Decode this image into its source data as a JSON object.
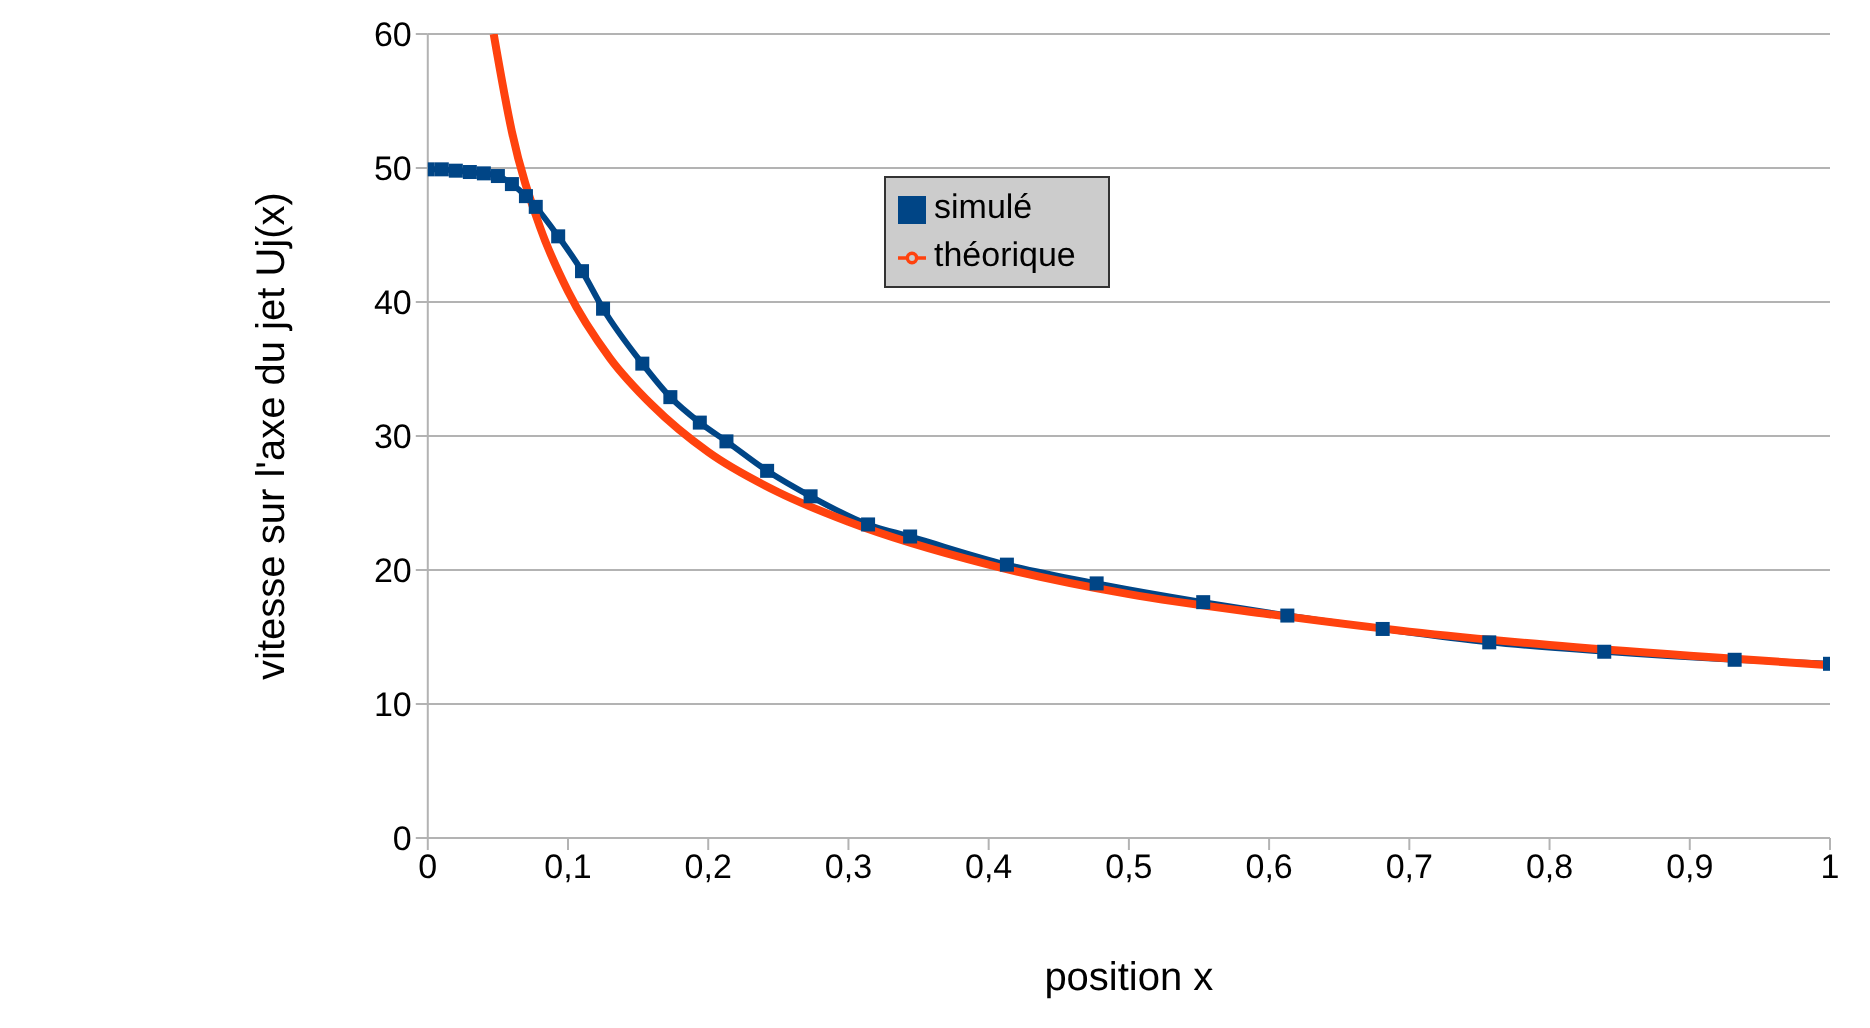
{
  "chart_data": {
    "type": "line",
    "xlabel": "position x",
    "ylabel": "vitesse sur l'axe du jet Uj(x)",
    "xlim": [
      0,
      1
    ],
    "ylim": [
      0,
      60
    ],
    "xticks": [
      0,
      {
        "value": 0.1,
        "label": "0,1"
      },
      {
        "value": 0.2,
        "label": "0,2"
      },
      {
        "value": 0.3,
        "label": "0,3"
      },
      {
        "value": 0.4,
        "label": "0,4"
      },
      {
        "value": 0.5,
        "label": "0,5"
      },
      {
        "value": 0.6,
        "label": "0,6"
      },
      {
        "value": 0.7,
        "label": "0,7"
      },
      {
        "value": 0.8,
        "label": "0,8"
      },
      {
        "value": 0.9,
        "label": "0,9"
      },
      1
    ],
    "yticks": [
      0,
      10,
      20,
      30,
      40,
      50,
      60
    ],
    "grid": "y",
    "legend": "top",
    "series": [
      {
        "name": "simulé",
        "color": "#004586",
        "marker": "square",
        "x": [
          0,
          0.01,
          0.02,
          0.03,
          0.04,
          0.05,
          0.06,
          0.07,
          0.077,
          0.093,
          0.11,
          0.125,
          0.153,
          0.173,
          0.194,
          0.213,
          0.242,
          0.273,
          0.314,
          0.344,
          0.413,
          0.477,
          0.553,
          0.613,
          0.681,
          0.757,
          0.839,
          0.932,
          1
        ],
        "values": [
          49.9,
          49.9,
          49.8,
          49.7,
          49.6,
          49.4,
          48.8,
          47.9,
          47.1,
          44.9,
          42.3,
          39.5,
          35.4,
          32.9,
          31.0,
          29.6,
          27.4,
          25.5,
          23.4,
          22.5,
          20.4,
          19.0,
          17.6,
          16.6,
          15.6,
          14.6,
          13.9,
          13.3,
          13.0
        ]
      },
      {
        "name": "théorique",
        "color": "#ff420e",
        "marker": "none",
        "x": [
          0.047,
          0.06,
          0.08,
          0.1,
          0.13,
          0.16,
          0.2,
          0.25,
          0.3,
          0.4,
          0.5,
          0.6,
          0.7,
          0.8,
          0.9,
          1
        ],
        "values": [
          60,
          52.7,
          45.6,
          40.8,
          35.8,
          32.3,
          28.8,
          25.8,
          23.6,
          20.4,
          18.2,
          16.7,
          15.4,
          14.4,
          13.6,
          12.9
        ]
      }
    ]
  }
}
